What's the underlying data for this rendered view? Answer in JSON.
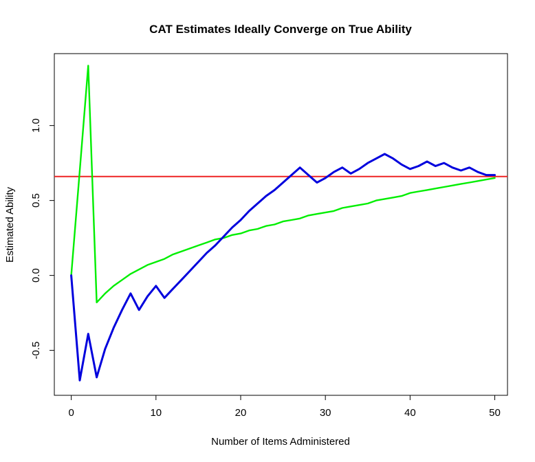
{
  "chart_data": {
    "type": "line",
    "title": "CAT Estimates Ideally Converge on True Ability",
    "xlabel": "Number of Items Administered",
    "ylabel": "Estimated Ability",
    "xlim": [
      -2,
      51.5
    ],
    "ylim": [
      -0.8,
      1.48
    ],
    "x_ticks": [
      0,
      10,
      20,
      30,
      40,
      50
    ],
    "y_ticks": [
      -0.5,
      0.0,
      0.5,
      1.0
    ],
    "x_tick_labels": [
      "0",
      "10",
      "20",
      "30",
      "40",
      "50"
    ],
    "y_tick_labels": [
      "-0.5",
      "0.0",
      "0.5",
      "1.0"
    ],
    "grid": false,
    "reference_line": {
      "y": 0.66,
      "color": "#ee2222"
    },
    "series": [
      {
        "color": "#0000dd",
        "x": [
          0,
          1,
          2,
          3,
          4,
          5,
          6,
          7,
          8,
          9,
          10,
          11,
          12,
          13,
          14,
          15,
          16,
          17,
          18,
          19,
          20,
          21,
          22,
          23,
          24,
          25,
          26,
          27,
          28,
          29,
          30,
          31,
          32,
          33,
          34,
          35,
          36,
          37,
          38,
          39,
          40,
          41,
          42,
          43,
          44,
          45,
          46,
          47,
          48,
          49,
          50
        ],
        "y": [
          0,
          -0.7,
          -0.39,
          -0.68,
          -0.49,
          -0.35,
          -0.23,
          -0.12,
          -0.23,
          -0.14,
          -0.07,
          -0.15,
          -0.09,
          -0.03,
          0.03,
          0.09,
          0.15,
          0.2,
          0.26,
          0.32,
          0.37,
          0.43,
          0.48,
          0.53,
          0.57,
          0.62,
          0.67,
          0.72,
          0.67,
          0.62,
          0.65,
          0.69,
          0.72,
          0.68,
          0.71,
          0.75,
          0.78,
          0.81,
          0.78,
          0.74,
          0.71,
          0.73,
          0.76,
          0.73,
          0.75,
          0.72,
          0.7,
          0.72,
          0.69,
          0.67,
          0.67
        ]
      },
      {
        "color": "#00ee00",
        "x": [
          0,
          1,
          2,
          3,
          4,
          5,
          6,
          7,
          8,
          9,
          10,
          11,
          12,
          13,
          14,
          15,
          16,
          17,
          18,
          19,
          20,
          21,
          22,
          23,
          24,
          25,
          26,
          27,
          28,
          29,
          30,
          31,
          32,
          33,
          34,
          35,
          36,
          37,
          38,
          39,
          40,
          41,
          42,
          43,
          44,
          45,
          46,
          47,
          48,
          49,
          50
        ],
        "y": [
          0,
          0.7,
          1.4,
          -0.18,
          -0.12,
          -0.07,
          -0.03,
          0.01,
          0.04,
          0.07,
          0.09,
          0.11,
          0.14,
          0.16,
          0.18,
          0.2,
          0.22,
          0.24,
          0.25,
          0.27,
          0.28,
          0.3,
          0.31,
          0.33,
          0.34,
          0.36,
          0.37,
          0.38,
          0.4,
          0.41,
          0.42,
          0.43,
          0.45,
          0.46,
          0.47,
          0.48,
          0.5,
          0.51,
          0.52,
          0.53,
          0.55,
          0.56,
          0.57,
          0.58,
          0.59,
          0.6,
          0.61,
          0.62,
          0.63,
          0.64,
          0.65
        ]
      }
    ]
  }
}
